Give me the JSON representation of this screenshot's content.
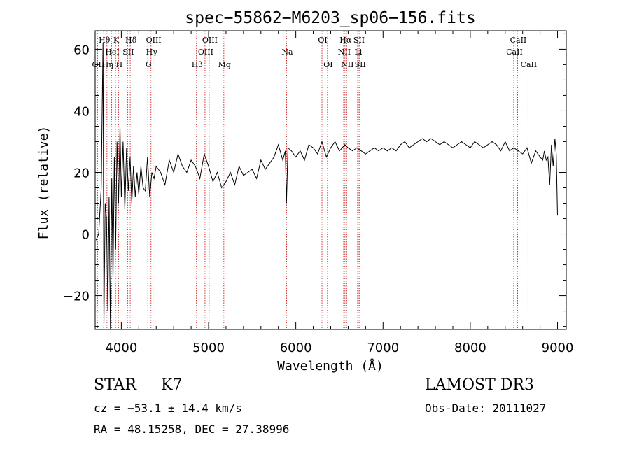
{
  "chart_data": {
    "type": "line",
    "title": "spec−55862−M6203_sp06−156.fits",
    "xlabel": "Wavelength (Å)",
    "ylabel": "Flux (relative)",
    "xlim": [
      3700,
      9100
    ],
    "ylim": [
      -31,
      66
    ],
    "x_ticks": [
      4000,
      5000,
      6000,
      7000,
      8000,
      9000
    ],
    "x_tick_labels": [
      "4000",
      "5000",
      "6000",
      "7000",
      "8000",
      "9000"
    ],
    "y_ticks": [
      -20,
      0,
      20,
      40,
      60
    ],
    "y_tick_labels": [
      "−20",
      "0",
      "20",
      "40",
      "60"
    ],
    "grid": false,
    "series": [
      {
        "name": "flux",
        "x": [
          3710,
          3740,
          3770,
          3790,
          3800,
          3815,
          3830,
          3845,
          3860,
          3875,
          3890,
          3905,
          3920,
          3935,
          3950,
          3968,
          3985,
          4000,
          4020,
          4040,
          4060,
          4080,
          4100,
          4120,
          4140,
          4160,
          4180,
          4200,
          4225,
          4250,
          4275,
          4300,
          4325,
          4350,
          4375,
          4400,
          4450,
          4500,
          4550,
          4600,
          4650,
          4700,
          4750,
          4800,
          4850,
          4900,
          4950,
          5000,
          5050,
          5100,
          5150,
          5200,
          5250,
          5300,
          5350,
          5400,
          5450,
          5500,
          5550,
          5600,
          5650,
          5700,
          5750,
          5800,
          5850,
          5880,
          5893,
          5910,
          5950,
          6000,
          6050,
          6100,
          6150,
          6200,
          6250,
          6300,
          6350,
          6400,
          6450,
          6500,
          6563,
          6600,
          6650,
          6700,
          6750,
          6800,
          6850,
          6900,
          6950,
          7000,
          7050,
          7100,
          7150,
          7200,
          7250,
          7300,
          7350,
          7400,
          7450,
          7500,
          7550,
          7600,
          7650,
          7700,
          7750,
          7800,
          7850,
          7900,
          7950,
          8000,
          8050,
          8100,
          8150,
          8200,
          8250,
          8300,
          8350,
          8400,
          8450,
          8500,
          8550,
          8600,
          8650,
          8700,
          8750,
          8800,
          8830,
          8850,
          8870,
          8890,
          8910,
          8930,
          8950,
          8970,
          8985,
          9000
        ],
        "y": [
          -2,
          0,
          15,
          62,
          -30,
          10,
          5,
          -25,
          12,
          -31,
          18,
          -15,
          25,
          -5,
          30,
          10,
          35,
          12,
          30,
          8,
          28,
          14,
          25,
          10,
          22,
          12,
          20,
          13,
          22,
          15,
          14,
          25,
          12,
          20,
          18,
          22,
          20,
          16,
          24,
          20,
          26,
          22,
          20,
          24,
          22,
          18,
          26,
          22,
          17,
          20,
          15,
          17,
          20,
          16,
          22,
          19,
          20,
          21,
          18,
          24,
          21,
          23,
          25,
          29,
          24,
          27,
          10,
          28,
          27,
          25,
          27,
          24,
          29,
          28,
          26,
          30,
          25,
          28,
          30,
          27,
          29,
          28,
          27,
          28,
          27,
          26,
          27,
          28,
          27,
          28,
          27,
          28,
          27,
          29,
          30,
          28,
          29,
          30,
          31,
          30,
          31,
          30,
          29,
          30,
          29,
          28,
          29,
          30,
          29,
          28,
          30,
          29,
          28,
          29,
          30,
          29,
          27,
          30,
          27,
          28,
          27,
          26,
          28,
          23,
          27,
          25,
          24,
          27,
          24,
          25,
          16,
          29,
          22,
          31,
          26,
          6
        ]
      }
    ],
    "lines": [
      {
        "label": "OII",
        "x": 3727,
        "row": 3
      },
      {
        "label": "Hθ",
        "x": 3798,
        "row": 1
      },
      {
        "label": "Hη",
        "x": 3835,
        "row": 3
      },
      {
        "label": "HeI",
        "x": 3889,
        "row": 2
      },
      {
        "label": "K",
        "x": 3934,
        "row": 1
      },
      {
        "label": "H",
        "x": 3968,
        "row": 3
      },
      {
        "label": "SII",
        "x": 4072,
        "row": 2
      },
      {
        "label": "Hδ",
        "x": 4102,
        "row": 1
      },
      {
        "label": "G",
        "x": 4304,
        "row": 3
      },
      {
        "label": "Hγ",
        "x": 4340,
        "row": 2
      },
      {
        "label": "OIII",
        "x": 4363,
        "row": 1
      },
      {
        "label": "Hβ",
        "x": 4861,
        "row": 3
      },
      {
        "label": "OIII",
        "x": 4959,
        "row": 2
      },
      {
        "label": "OIII",
        "x": 5007,
        "row": 1
      },
      {
        "label": "Mg",
        "x": 5175,
        "row": 3
      },
      {
        "label": "Na",
        "x": 5894,
        "row": 2
      },
      {
        "label": "OI",
        "x": 6300,
        "row": 1
      },
      {
        "label": "OI",
        "x": 6363,
        "row": 3
      },
      {
        "label": "NII",
        "x": 6548,
        "row": 2
      },
      {
        "label": "Hα",
        "x": 6563,
        "row": 1
      },
      {
        "label": "NII",
        "x": 6583,
        "row": 3
      },
      {
        "label": "SII",
        "x": 6717,
        "row": 1
      },
      {
        "label": "Li",
        "x": 6708,
        "row": 2
      },
      {
        "label": "SII",
        "x": 6731,
        "row": 3
      },
      {
        "label": "CaII",
        "x": 8498,
        "row": 2
      },
      {
        "label": "CaII",
        "x": 8542,
        "row": 1
      },
      {
        "label": "CaII",
        "x": 8662,
        "row": 3
      }
    ],
    "line_color": "#cc2222"
  },
  "info": {
    "object_class": "STAR",
    "subclass": "K7",
    "redshift_line": "cz = −53.1 ± 14.4 km/s",
    "coords_line": "RA =  48.15258, DEC =  27.38996",
    "survey": "LAMOST DR3",
    "obs_date": "Obs-Date: 20111027"
  }
}
